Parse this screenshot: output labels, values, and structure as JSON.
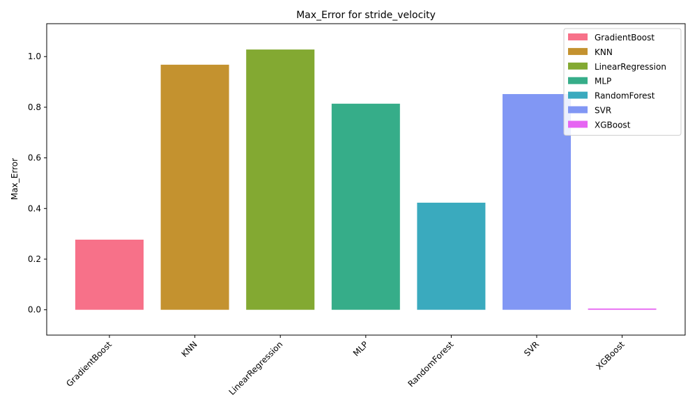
{
  "chart_data": {
    "type": "bar",
    "title": "Max_Error for stride_velocity",
    "xlabel": "",
    "ylabel": "Max_Error",
    "ylim": [
      -0.1,
      1.13
    ],
    "yticks": [
      0.0,
      0.2,
      0.4,
      0.6,
      0.8,
      1.0
    ],
    "ytick_labels": [
      "0.0",
      "0.2",
      "0.4",
      "0.6",
      "0.8",
      "1.0"
    ],
    "categories": [
      "GradientBoost",
      "KNN",
      "LinearRegression",
      "MLP",
      "RandomForest",
      "SVR",
      "XGBoost"
    ],
    "values": [
      0.277,
      0.968,
      1.028,
      0.814,
      0.423,
      0.852,
      0.005
    ],
    "colors": [
      "#f77189",
      "#c4922f",
      "#83a932",
      "#36ad89",
      "#3aaabe",
      "#8197f4",
      "#e664f2"
    ],
    "legend": {
      "placement": "top-right",
      "entries": [
        "GradientBoost",
        "KNN",
        "LinearRegression",
        "MLP",
        "RandomForest",
        "SVR",
        "XGBoost"
      ]
    },
    "grid": false
  }
}
